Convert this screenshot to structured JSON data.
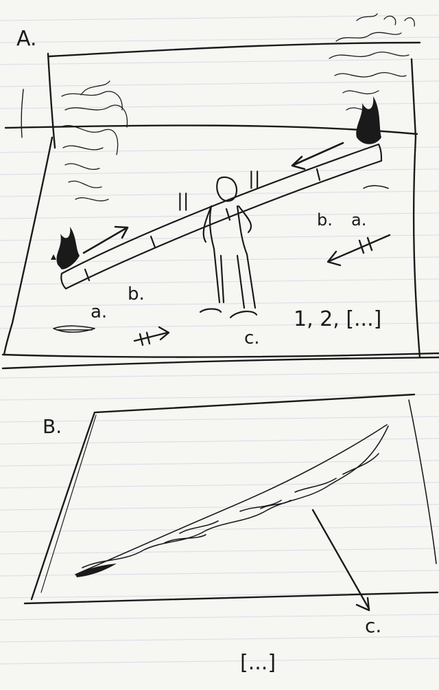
{
  "panel_a": {
    "label": "A.",
    "mark_a": "a.",
    "mark_b": "b.",
    "mark_c": "c.",
    "mark_b_right": "b.",
    "mark_a_right": "a.",
    "sequence": "1, 2, [...]",
    "pause_marks": "||"
  },
  "panel_b": {
    "label": "B.",
    "mark_c": "c.",
    "ellipsis": "[...]"
  },
  "colors": {
    "paper": "#f6f6f3",
    "rule_line": "#d7dde4",
    "ink": "#1a1a1a"
  },
  "icons": [
    "arrow-right-icon",
    "arrow-left-icon",
    "arrow-down-icon",
    "fire-icon",
    "person-icon"
  ]
}
